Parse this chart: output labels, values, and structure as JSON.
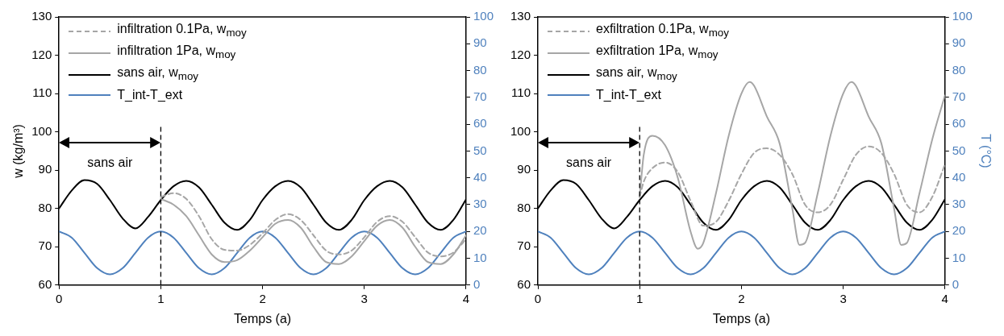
{
  "chart_data": [
    {
      "type": "line",
      "xlabel": "Temps (a)",
      "ylabel": "w (kg/m³)",
      "xlim": [
        0,
        4
      ],
      "xticks": [
        0,
        1,
        2,
        3,
        4
      ],
      "ylim": [
        60,
        130
      ],
      "yticks": [
        60,
        70,
        80,
        90,
        100,
        110,
        120,
        130
      ],
      "y2lim": [
        0,
        100
      ],
      "y2ticks": [
        0,
        10,
        20,
        30,
        40,
        50,
        60,
        70,
        80,
        90,
        100
      ],
      "grid": false,
      "legend": "top left",
      "marker": "none",
      "x": [
        0,
        0.125,
        0.25,
        0.375,
        0.5,
        0.625,
        0.75,
        0.875,
        1,
        1.125,
        1.25,
        1.375,
        1.5,
        1.625,
        1.75,
        1.875,
        2,
        2.125,
        2.25,
        2.375,
        2.5,
        2.625,
        2.75,
        2.875,
        3,
        3.125,
        3.25,
        3.375,
        3.5,
        3.625,
        3.75,
        3.875,
        4
      ],
      "series": [
        {
          "name": "infiltration 0.1Pa,  w$_{moy}$",
          "line_style": "dashed",
          "color": "#a6a6a6",
          "x": [
            1,
            1.125,
            1.25,
            1.375,
            1.5,
            1.625,
            1.75,
            1.875,
            2,
            2.125,
            2.25,
            2.375,
            2.5,
            2.625,
            2.75,
            2.875,
            3,
            3.125,
            3.25,
            3.375,
            3.5,
            3.625,
            3.75,
            3.875,
            4
          ],
          "values": [
            83,
            84,
            82.5,
            78,
            72,
            69.2,
            69,
            70.5,
            73.5,
            77,
            78.5,
            77,
            73,
            69,
            68,
            69,
            72.5,
            76.5,
            78,
            76.5,
            72.5,
            68.5,
            67.5,
            68.5,
            72
          ]
        },
        {
          "name": "infiltration 1Pa,  w$_{moy}$",
          "line_style": "solid",
          "color": "#a6a6a6",
          "x": [
            1,
            1.125,
            1.25,
            1.375,
            1.5,
            1.625,
            1.75,
            1.875,
            2,
            2.125,
            2.25,
            2.375,
            2.5,
            2.625,
            2.75,
            2.875,
            3,
            3.125,
            3.25,
            3.375,
            3.5,
            3.625,
            3.75,
            3.875,
            4
          ],
          "values": [
            82.5,
            81,
            78,
            73,
            68,
            66,
            66.5,
            69,
            72.5,
            76,
            77,
            75,
            70,
            66,
            65.5,
            67.5,
            71.5,
            75.5,
            77,
            75,
            70,
            66,
            65.5,
            68,
            73
          ]
        },
        {
          "name": "sans air, w$_{moy}$",
          "line_style": "solid",
          "color": "#000000",
          "values": [
            80,
            84.7,
            87.4,
            86.4,
            82.2,
            77.4,
            74.8,
            77.8,
            82.2,
            85.8,
            87.2,
            85.5,
            81,
            76.3,
            74.4,
            77,
            82.2,
            85.8,
            87.2,
            85.5,
            81,
            76.3,
            74.4,
            77,
            82.2,
            85.8,
            87.2,
            85.5,
            81,
            76.3,
            74.4,
            77,
            82.4
          ]
        },
        {
          "name": "T_int-T_ext",
          "line_style": "solid",
          "axis": "y2",
          "color": "#4f81bd",
          "values": [
            20,
            17.7,
            12,
            6.3,
            4,
            6.3,
            12,
            17.7,
            20,
            17.7,
            12,
            6.3,
            4,
            6.3,
            12,
            17.7,
            20,
            17.7,
            12,
            6.3,
            4,
            6.3,
            12,
            17.7,
            20,
            17.7,
            12,
            6.3,
            4,
            6.3,
            12,
            17.7,
            20
          ]
        }
      ],
      "ref_lines": [
        {
          "axis": "x",
          "value": 1,
          "color": "#000000",
          "line_style": "dashed"
        }
      ],
      "annotations": [
        "sans air"
      ]
    },
    {
      "type": "line",
      "xlabel": "Temps (a)",
      "y2label": "T (°C)",
      "xlim": [
        0,
        4
      ],
      "xticks": [
        0,
        1,
        2,
        3,
        4
      ],
      "ylim": [
        60,
        130
      ],
      "yticks": [
        60,
        70,
        80,
        90,
        100,
        110,
        120,
        130
      ],
      "y2lim": [
        0,
        100
      ],
      "y2ticks": [
        0,
        10,
        20,
        30,
        40,
        50,
        60,
        70,
        80,
        90,
        100
      ],
      "grid": false,
      "legend": "top left",
      "marker": "none",
      "x": [
        0,
        0.125,
        0.25,
        0.375,
        0.5,
        0.625,
        0.75,
        0.875,
        1,
        1.125,
        1.25,
        1.375,
        1.5,
        1.625,
        1.75,
        1.875,
        2,
        2.125,
        2.25,
        2.375,
        2.5,
        2.625,
        2.75,
        2.875,
        3,
        3.125,
        3.25,
        3.375,
        3.5,
        3.625,
        3.75,
        3.875,
        4
      ],
      "series": [
        {
          "name": "exfiltration 0.1Pa,  w$_{moy}$",
          "line_style": "dashed",
          "color": "#a6a6a6",
          "x": [
            1,
            1.04,
            1.125,
            1.25,
            1.375,
            1.5,
            1.625,
            1.75,
            1.875,
            2,
            2.125,
            2.25,
            2.375,
            2.5,
            2.625,
            2.75,
            2.875,
            3,
            3.125,
            3.25,
            3.375,
            3.5,
            3.625,
            3.75,
            3.875,
            4
          ],
          "values": [
            83,
            87,
            90.5,
            92,
            89.5,
            82,
            75.5,
            76.5,
            82,
            89,
            94.5,
            95.7,
            94,
            89,
            81,
            79,
            81,
            87.5,
            94,
            96.2,
            94.5,
            89,
            81,
            79,
            83,
            91.5
          ]
        },
        {
          "name": "exfiltration 1Pa,  w$_{moy}$",
          "line_style": "solid",
          "color": "#a6a6a6",
          "x": [
            1,
            1.04,
            1.125,
            1.25,
            1.375,
            1.5,
            1.57,
            1.625,
            1.75,
            1.875,
            2,
            2.08,
            2.125,
            2.25,
            2.375,
            2.5,
            2.57,
            2.625,
            2.75,
            2.875,
            3,
            3.08,
            3.125,
            3.25,
            3.375,
            3.5,
            3.57,
            3.625,
            3.75,
            3.875,
            4
          ],
          "values": [
            83,
            94,
            99,
            96.5,
            88,
            74,
            69.5,
            71,
            84,
            99,
            110,
            113,
            112,
            104,
            97,
            80,
            70.5,
            71,
            84,
            99,
            110,
            113,
            112,
            104,
            97,
            80,
            70.5,
            71,
            84,
            98,
            109.5
          ]
        },
        {
          "name": "sans air, w$_{moy}$",
          "line_style": "solid",
          "color": "#000000",
          "values": [
            80,
            84.7,
            87.4,
            86.4,
            82.2,
            77.4,
            74.8,
            77.8,
            82.2,
            85.8,
            87.2,
            85.5,
            81,
            76.3,
            74.4,
            77,
            82.2,
            85.8,
            87.2,
            85.5,
            81,
            76.3,
            74.4,
            77,
            82.2,
            85.8,
            87.2,
            85.5,
            81,
            76.3,
            74.4,
            77,
            82.4
          ]
        },
        {
          "name": "T_int-T_ext",
          "line_style": "solid",
          "axis": "y2",
          "color": "#4f81bd",
          "values": [
            20,
            17.7,
            12,
            6.3,
            4,
            6.3,
            12,
            17.7,
            20,
            17.7,
            12,
            6.3,
            4,
            6.3,
            12,
            17.7,
            20,
            17.7,
            12,
            6.3,
            4,
            6.3,
            12,
            17.7,
            20,
            17.7,
            12,
            6.3,
            4,
            6.3,
            12,
            17.7,
            20
          ]
        }
      ],
      "ref_lines": [
        {
          "axis": "x",
          "value": 1,
          "color": "#000000",
          "line_style": "dashed"
        }
      ],
      "annotations": [
        "sans air"
      ]
    }
  ]
}
